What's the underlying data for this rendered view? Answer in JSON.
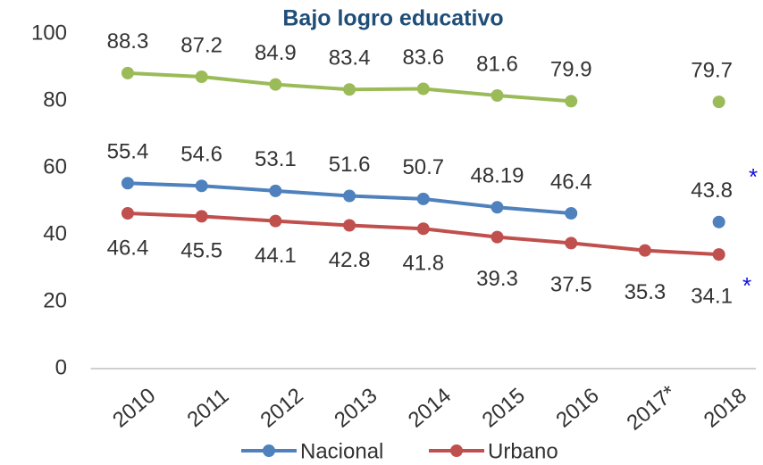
{
  "chart_data": {
    "type": "line",
    "title": "Bajo logro educativo",
    "categories": [
      "2010",
      "2011",
      "2012",
      "2013",
      "2014",
      "2015",
      "2016",
      "2017*",
      "2018"
    ],
    "series": [
      {
        "color": "#9bbb59",
        "values": [
          88.3,
          87.2,
          84.9,
          83.4,
          83.6,
          81.6,
          79.9,
          null,
          79.7
        ]
      },
      {
        "name": "Nacional",
        "color": "#4f81bd",
        "values": [
          55.4,
          54.6,
          53.1,
          51.6,
          50.7,
          48.19,
          46.4,
          null,
          43.8
        ]
      },
      {
        "name": "Urbano",
        "color": "#c0504d",
        "values": [
          46.4,
          45.5,
          44.1,
          42.8,
          41.8,
          39.3,
          37.5,
          35.3,
          34.1
        ]
      }
    ],
    "annotations": [
      "*",
      "*"
    ],
    "ylim": [
      0,
      100
    ],
    "yticks": [
      0,
      20,
      40,
      60,
      80,
      100
    ],
    "grid": false,
    "legend": "bottom"
  }
}
